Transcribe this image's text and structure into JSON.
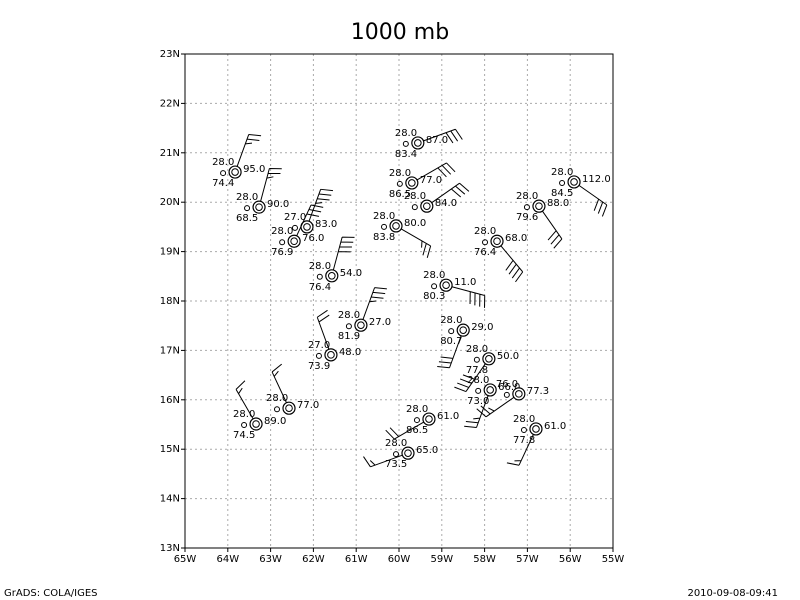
{
  "chart_data": {
    "type": "station",
    "title": "1000 mb",
    "xlim": [
      -65,
      -55
    ],
    "ylim": [
      13,
      23
    ],
    "xticks": [
      {
        "value": -65,
        "label": "65W"
      },
      {
        "value": -64,
        "label": "64W"
      },
      {
        "value": -63,
        "label": "63W"
      },
      {
        "value": -62,
        "label": "62W"
      },
      {
        "value": -61,
        "label": "61W"
      },
      {
        "value": -60,
        "label": "60W"
      },
      {
        "value": -59,
        "label": "59W"
      },
      {
        "value": -58,
        "label": "58W"
      },
      {
        "value": -57,
        "label": "57W"
      },
      {
        "value": -56,
        "label": "56W"
      },
      {
        "value": -55,
        "label": "55W"
      }
    ],
    "yticks": [
      {
        "value": 13,
        "label": "13N"
      },
      {
        "value": 14,
        "label": "14N"
      },
      {
        "value": 15,
        "label": "15N"
      },
      {
        "value": 16,
        "label": "16N"
      },
      {
        "value": 17,
        "label": "17N"
      },
      {
        "value": 18,
        "label": "18N"
      },
      {
        "value": 19,
        "label": "19N"
      },
      {
        "value": 20,
        "label": "20N"
      },
      {
        "value": 21,
        "label": "21N"
      },
      {
        "value": 22,
        "label": "22N"
      },
      {
        "value": 23,
        "label": "23N"
      }
    ],
    "grid": true,
    "stations": [
      {
        "lon": -63.83,
        "lat": 20.61,
        "values": [
          28,
          95,
          74.4
        ],
        "value_labels": [
          "28.0",
          "95.0",
          "74.4"
        ],
        "wind_dir": 20,
        "wind_speed": 25
      },
      {
        "lon": -63.27,
        "lat": 19.9,
        "values": [
          28,
          90,
          68.5
        ],
        "value_labels": [
          "28.0",
          "90.0",
          "68.5"
        ],
        "wind_dir": 15,
        "wind_speed": 25
      },
      {
        "lon": -62.15,
        "lat": 19.5,
        "values": [
          27,
          83
        ],
        "value_labels": [
          "27.0",
          "83.0"
        ],
        "wind_dir": 20,
        "wind_speed": 35
      },
      {
        "lon": -62.45,
        "lat": 19.21,
        "values": [
          28,
          76,
          76.9
        ],
        "value_labels": [
          "28.0",
          "76.0",
          "76.9"
        ],
        "wind_dir": 25,
        "wind_speed": 30
      },
      {
        "lon": -61.57,
        "lat": 18.51,
        "values": [
          28,
          54,
          76.4
        ],
        "value_labels": [
          "28.0",
          "54.0",
          "76.4"
        ],
        "wind_dir": 15,
        "wind_speed": 40
      },
      {
        "lon": -60.89,
        "lat": 17.51,
        "values": [
          28,
          27,
          81.9
        ],
        "value_labels": [
          "28.0",
          "27.0",
          "81.9"
        ],
        "wind_dir": 20,
        "wind_speed": 35
      },
      {
        "lon": -61.59,
        "lat": 16.91,
        "values": [
          27,
          48,
          73.9
        ],
        "value_labels": [
          "27.0",
          "48.0",
          "73.9"
        ],
        "wind_dir": 340,
        "wind_speed": 20
      },
      {
        "lon": -62.57,
        "lat": 15.83,
        "values": [
          28,
          77
        ],
        "value_labels": [
          "28.0",
          "77.0"
        ],
        "wind_dir": 335,
        "wind_speed": 15
      },
      {
        "lon": -63.34,
        "lat": 15.51,
        "values": [
          28,
          89,
          74.5
        ],
        "value_labels": [
          "28.0",
          "89.0",
          "74.5"
        ],
        "wind_dir": 330,
        "wind_speed": 15
      },
      {
        "lon": -59.56,
        "lat": 21.2,
        "values": [
          28,
          87,
          83.4
        ],
        "value_labels": [
          "28.0",
          "87.0",
          "83.4"
        ],
        "wind_dir": 70,
        "wind_speed": 30
      },
      {
        "lon": -59.7,
        "lat": 20.39,
        "values": [
          28,
          77,
          86.5
        ],
        "value_labels": [
          "28.0",
          "77.0",
          "86.5"
        ],
        "wind_dir": 60,
        "wind_speed": 30
      },
      {
        "lon": -59.35,
        "lat": 19.92,
        "values": [
          28,
          84
        ],
        "value_labels": [
          "28.0",
          "84.0"
        ],
        "wind_dir": 55,
        "wind_speed": 30
      },
      {
        "lon": -60.07,
        "lat": 19.52,
        "values": [
          28,
          80,
          83.8
        ],
        "value_labels": [
          "28.0",
          "80.0",
          "83.8"
        ],
        "wind_dir": 120,
        "wind_speed": 25
      },
      {
        "lon": -58.9,
        "lat": 18.32,
        "values": [
          28,
          11,
          80.3
        ],
        "value_labels": [
          "28.0",
          "11.0",
          "80.3"
        ],
        "wind_dir": 105,
        "wind_speed": 40
      },
      {
        "lon": -58.5,
        "lat": 17.41,
        "values": [
          28,
          29,
          80.7
        ],
        "value_labels": [
          "28.0",
          "29.0",
          "80.7"
        ],
        "wind_dir": 200,
        "wind_speed": 30
      },
      {
        "lon": -57.9,
        "lat": 16.83,
        "values": [
          28,
          50,
          77.8
        ],
        "value_labels": [
          "28.0",
          "50.0",
          "77.8"
        ],
        "wind_dir": 215,
        "wind_speed": 40
      },
      {
        "lon": -57.87,
        "lat": 16.2,
        "values": [
          28,
          66,
          73
        ],
        "value_labels": [
          "28.0",
          "66.0",
          "73.0"
        ],
        "wind_dir": 200,
        "wind_speed": 25
      },
      {
        "lon": -57.2,
        "lat": 16.12,
        "values": [
          76,
          77.3
        ],
        "value_labels": [
          "76.0",
          "77.3"
        ],
        "wind_dir": 235,
        "wind_speed": 25
      },
      {
        "lon": -56.8,
        "lat": 15.41,
        "values": [
          28,
          61,
          77.8
        ],
        "value_labels": [
          "28.0",
          "61.0",
          "77.8"
        ],
        "wind_dir": 205,
        "wind_speed": 15
      },
      {
        "lon": -59.3,
        "lat": 15.61,
        "values": [
          28,
          61,
          86.5
        ],
        "value_labels": [
          "28.0",
          "61.0",
          "86.5"
        ],
        "wind_dir": 240,
        "wind_speed": 20
      },
      {
        "lon": -59.79,
        "lat": 14.92,
        "values": [
          28,
          65,
          73.5
        ],
        "value_labels": [
          "28.0",
          "65.0",
          "73.5"
        ],
        "wind_dir": 250,
        "wind_speed": 15
      },
      {
        "lon": -57.71,
        "lat": 19.21,
        "values": [
          28,
          68,
          76.4
        ],
        "value_labels": [
          "28.0",
          "68.0",
          "76.4"
        ],
        "wind_dir": 140,
        "wind_speed": 40
      },
      {
        "lon": -56.73,
        "lat": 19.92,
        "values": [
          28,
          88,
          79.6
        ],
        "value_labels": [
          "28.0",
          "88.0",
          "79.6"
        ],
        "wind_dir": 145,
        "wind_speed": 30
      },
      {
        "lon": -55.91,
        "lat": 20.41,
        "values": [
          28,
          112,
          84.5
        ],
        "value_labels": [
          "28.0",
          "112.0",
          "84.5"
        ],
        "wind_dir": 125,
        "wind_speed": 30
      }
    ]
  },
  "footer": {
    "left": "GrADS: COLA/IGES",
    "right": "2010-09-08-09:41"
  }
}
